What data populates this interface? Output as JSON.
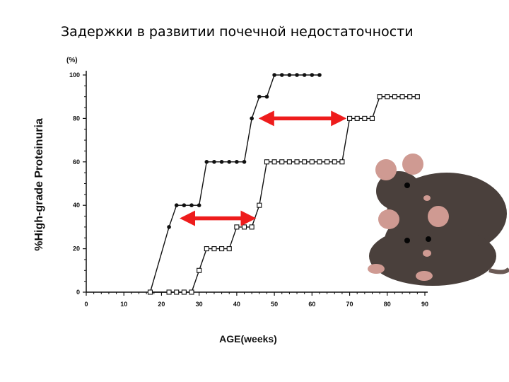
{
  "slide": {
    "title": "Задержки в развитии почечной недостаточности"
  },
  "chart_data": {
    "type": "line",
    "xlabel": "AGE(weeks)",
    "ylabel": "%High-grade Proteinuria",
    "yunit": "(%)",
    "xlim": [
      0,
      90
    ],
    "ylim": [
      0,
      100
    ],
    "xticks": [
      "0",
      "10",
      "20",
      "30",
      "40",
      "50",
      "60",
      "70",
      "80",
      "90"
    ],
    "yticks": [
      "0",
      "20",
      "40",
      "60",
      "80",
      "100"
    ],
    "grid": false,
    "series": [
      {
        "marker": "filled-circle",
        "color": "#111111",
        "x": [
          17,
          22,
          24,
          26,
          28,
          30,
          32,
          34,
          36,
          38,
          40,
          42,
          44,
          46,
          48,
          50,
          52,
          54,
          56,
          58,
          60,
          62
        ],
        "y": [
          0,
          30,
          40,
          40,
          40,
          40,
          60,
          60,
          60,
          60,
          60,
          60,
          80,
          90,
          90,
          100,
          100,
          100,
          100,
          100,
          100,
          100
        ]
      },
      {
        "marker": "open-square",
        "color": "#111111",
        "x": [
          17,
          22,
          24,
          26,
          28,
          30,
          32,
          34,
          36,
          38,
          40,
          42,
          44,
          46,
          48,
          50,
          52,
          54,
          56,
          58,
          60,
          62,
          64,
          66,
          68,
          70,
          72,
          74,
          76,
          78,
          80,
          82,
          84,
          86,
          88
        ],
        "y": [
          0,
          0,
          0,
          0,
          0,
          10,
          20,
          20,
          20,
          20,
          30,
          30,
          30,
          40,
          60,
          60,
          60,
          60,
          60,
          60,
          60,
          60,
          60,
          60,
          60,
          80,
          80,
          80,
          80,
          90,
          90,
          90,
          90,
          90,
          90
        ]
      }
    ],
    "annotations": [
      {
        "type": "double-arrow",
        "color": "#ee1c1c",
        "x": [
          46,
          69
        ],
        "y": 80
      },
      {
        "type": "double-arrow",
        "color": "#ee1c1c",
        "x": [
          25,
          45
        ],
        "y": 34
      }
    ]
  },
  "photo": {
    "icon": "rats-photo-icon",
    "fur_color": "#4a403c",
    "ear_color": "#cf9a92"
  }
}
